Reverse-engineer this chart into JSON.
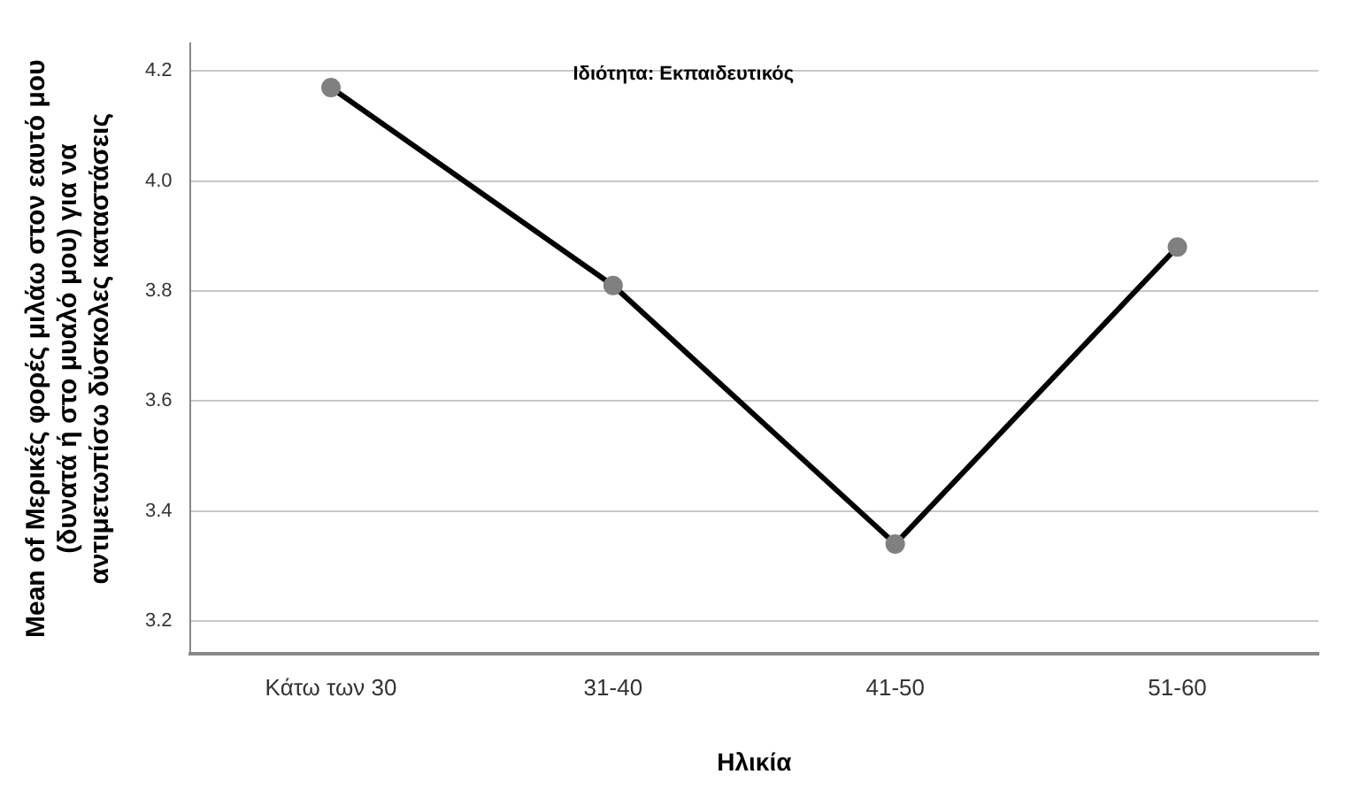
{
  "chart_data": {
    "type": "line",
    "title": "Ιδιότητα: Εκπαιδευτικός",
    "xlabel": "Ηλικία",
    "ylabel": "Mean of Μερικές φορές μιλάω στον εαυτό μου (δυνατά ή στο μυαλό μου) για να αντιμετωπίσω δύσκολες καταστάσεις",
    "categories": [
      "Κάτω των 30",
      "31-40",
      "41-50",
      "51-60"
    ],
    "series": [
      {
        "color": "#000000",
        "values": [
          4.17,
          3.81,
          3.34,
          3.88
        ]
      }
    ],
    "ylim": [
      3.14,
      4.25
    ],
    "yticks": [
      3.2,
      3.4,
      3.6,
      3.8,
      {
        "value": 4,
        "label": "4.0"
      },
      4.2
    ],
    "grid": "y",
    "marker": "circle",
    "line_style": "solid",
    "legend": false
  }
}
